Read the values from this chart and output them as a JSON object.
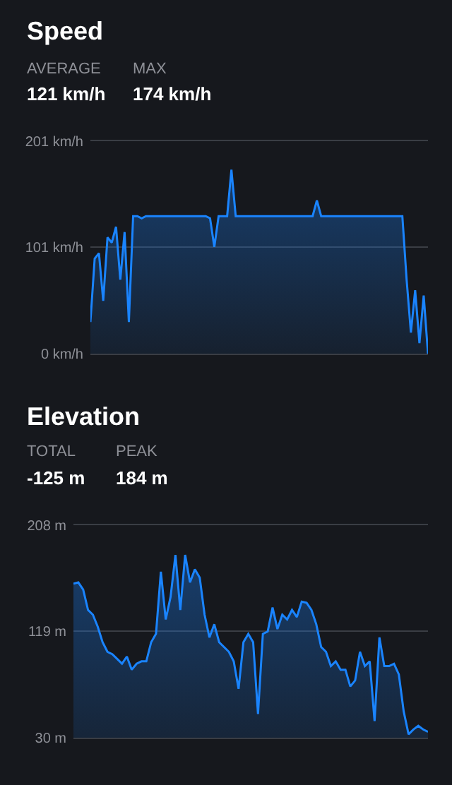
{
  "chart_data": [
    {
      "type": "area",
      "title": "Speed",
      "annotations": [
        "AVERAGE",
        "121 km/h",
        "MAX",
        "174 km/h"
      ],
      "categories": [
        null,
        null,
        null,
        null,
        null,
        null,
        null,
        null,
        null,
        null,
        null,
        null,
        null,
        null,
        null,
        null,
        null,
        null,
        null,
        null,
        null,
        null,
        null,
        null,
        null,
        null,
        null,
        null,
        null,
        null,
        null,
        null,
        null,
        null,
        null,
        null,
        null,
        null,
        null,
        null,
        null,
        null,
        null,
        null,
        null,
        null,
        null,
        null,
        null,
        null,
        null,
        null,
        null,
        null,
        null,
        null,
        null,
        null,
        null,
        null,
        null,
        null,
        null,
        null,
        null,
        null,
        null,
        null,
        null,
        null,
        null,
        null,
        null,
        null,
        null,
        null,
        null,
        null,
        null,
        null
      ],
      "series": [
        {
          "color": "#1a84ff",
          "values": [
            30,
            90,
            95,
            50,
            110,
            105,
            120,
            70,
            115,
            30,
            130,
            130,
            128,
            130,
            130,
            130,
            130,
            130,
            130,
            130,
            130,
            130,
            130,
            130,
            130,
            130,
            130,
            130,
            128,
            101,
            130,
            130,
            130,
            174,
            130,
            130,
            130,
            130,
            130,
            130,
            130,
            130,
            130,
            130,
            130,
            130,
            130,
            130,
            130,
            130,
            130,
            130,
            130,
            145,
            130,
            130,
            130,
            130,
            130,
            130,
            130,
            130,
            130,
            130,
            130,
            130,
            130,
            130,
            130,
            130,
            130,
            130,
            130,
            130,
            70,
            20,
            60,
            10,
            55,
            0
          ]
        }
      ],
      "ylim": [
        0,
        201
      ],
      "yticks": [
        {
          "value": 0,
          "label": "0 km/h"
        },
        {
          "value": 101,
          "label": "101 km/h"
        },
        {
          "value": 201,
          "label": "201 km/h"
        }
      ],
      "grid": "y",
      "tick_labels": "y"
    },
    {
      "type": "area",
      "title": "Elevation",
      "annotations": [
        "TOTAL",
        "-125 m",
        "PEAK",
        "184 m"
      ],
      "categories": [
        null,
        null,
        null,
        null,
        null,
        null,
        null,
        null,
        null,
        null,
        null,
        null,
        null,
        null,
        null,
        null,
        null,
        null,
        null,
        null,
        null,
        null,
        null,
        null,
        null,
        null,
        null,
        null,
        null,
        null,
        null,
        null,
        null,
        null,
        null,
        null,
        null,
        null,
        null,
        null,
        null,
        null,
        null,
        null,
        null,
        null,
        null,
        null,
        null,
        null,
        null,
        null,
        null,
        null,
        null,
        null,
        null,
        null,
        null,
        null,
        null,
        null,
        null,
        null,
        null,
        null,
        null,
        null,
        null,
        null,
        null,
        null,
        null,
        null
      ],
      "series": [
        {
          "color": "#1a84ff",
          "values": [
            159,
            160,
            154,
            137,
            133,
            123,
            110,
            102,
            100,
            96,
            92,
            98,
            87,
            92,
            94,
            94,
            110,
            117,
            169,
            129,
            148,
            183,
            137,
            183,
            160,
            171,
            164,
            133,
            114,
            125,
            110,
            106,
            102,
            94,
            71,
            110,
            117,
            110,
            50,
            117,
            119,
            139,
            121,
            133,
            129,
            137,
            131,
            144,
            143,
            137,
            125,
            106,
            102,
            90,
            94,
            87,
            87,
            73,
            78,
            102,
            90,
            94,
            44,
            114,
            90,
            90,
            92,
            83,
            52,
            33,
            37,
            40,
            37,
            35
          ]
        }
      ],
      "ylim": [
        30,
        208
      ],
      "yticks": [
        {
          "value": 30,
          "label": "30 m"
        },
        {
          "value": 119,
          "label": "119 m"
        },
        {
          "value": 208,
          "label": "208 m"
        }
      ],
      "grid": "y",
      "tick_labels": "y"
    }
  ]
}
